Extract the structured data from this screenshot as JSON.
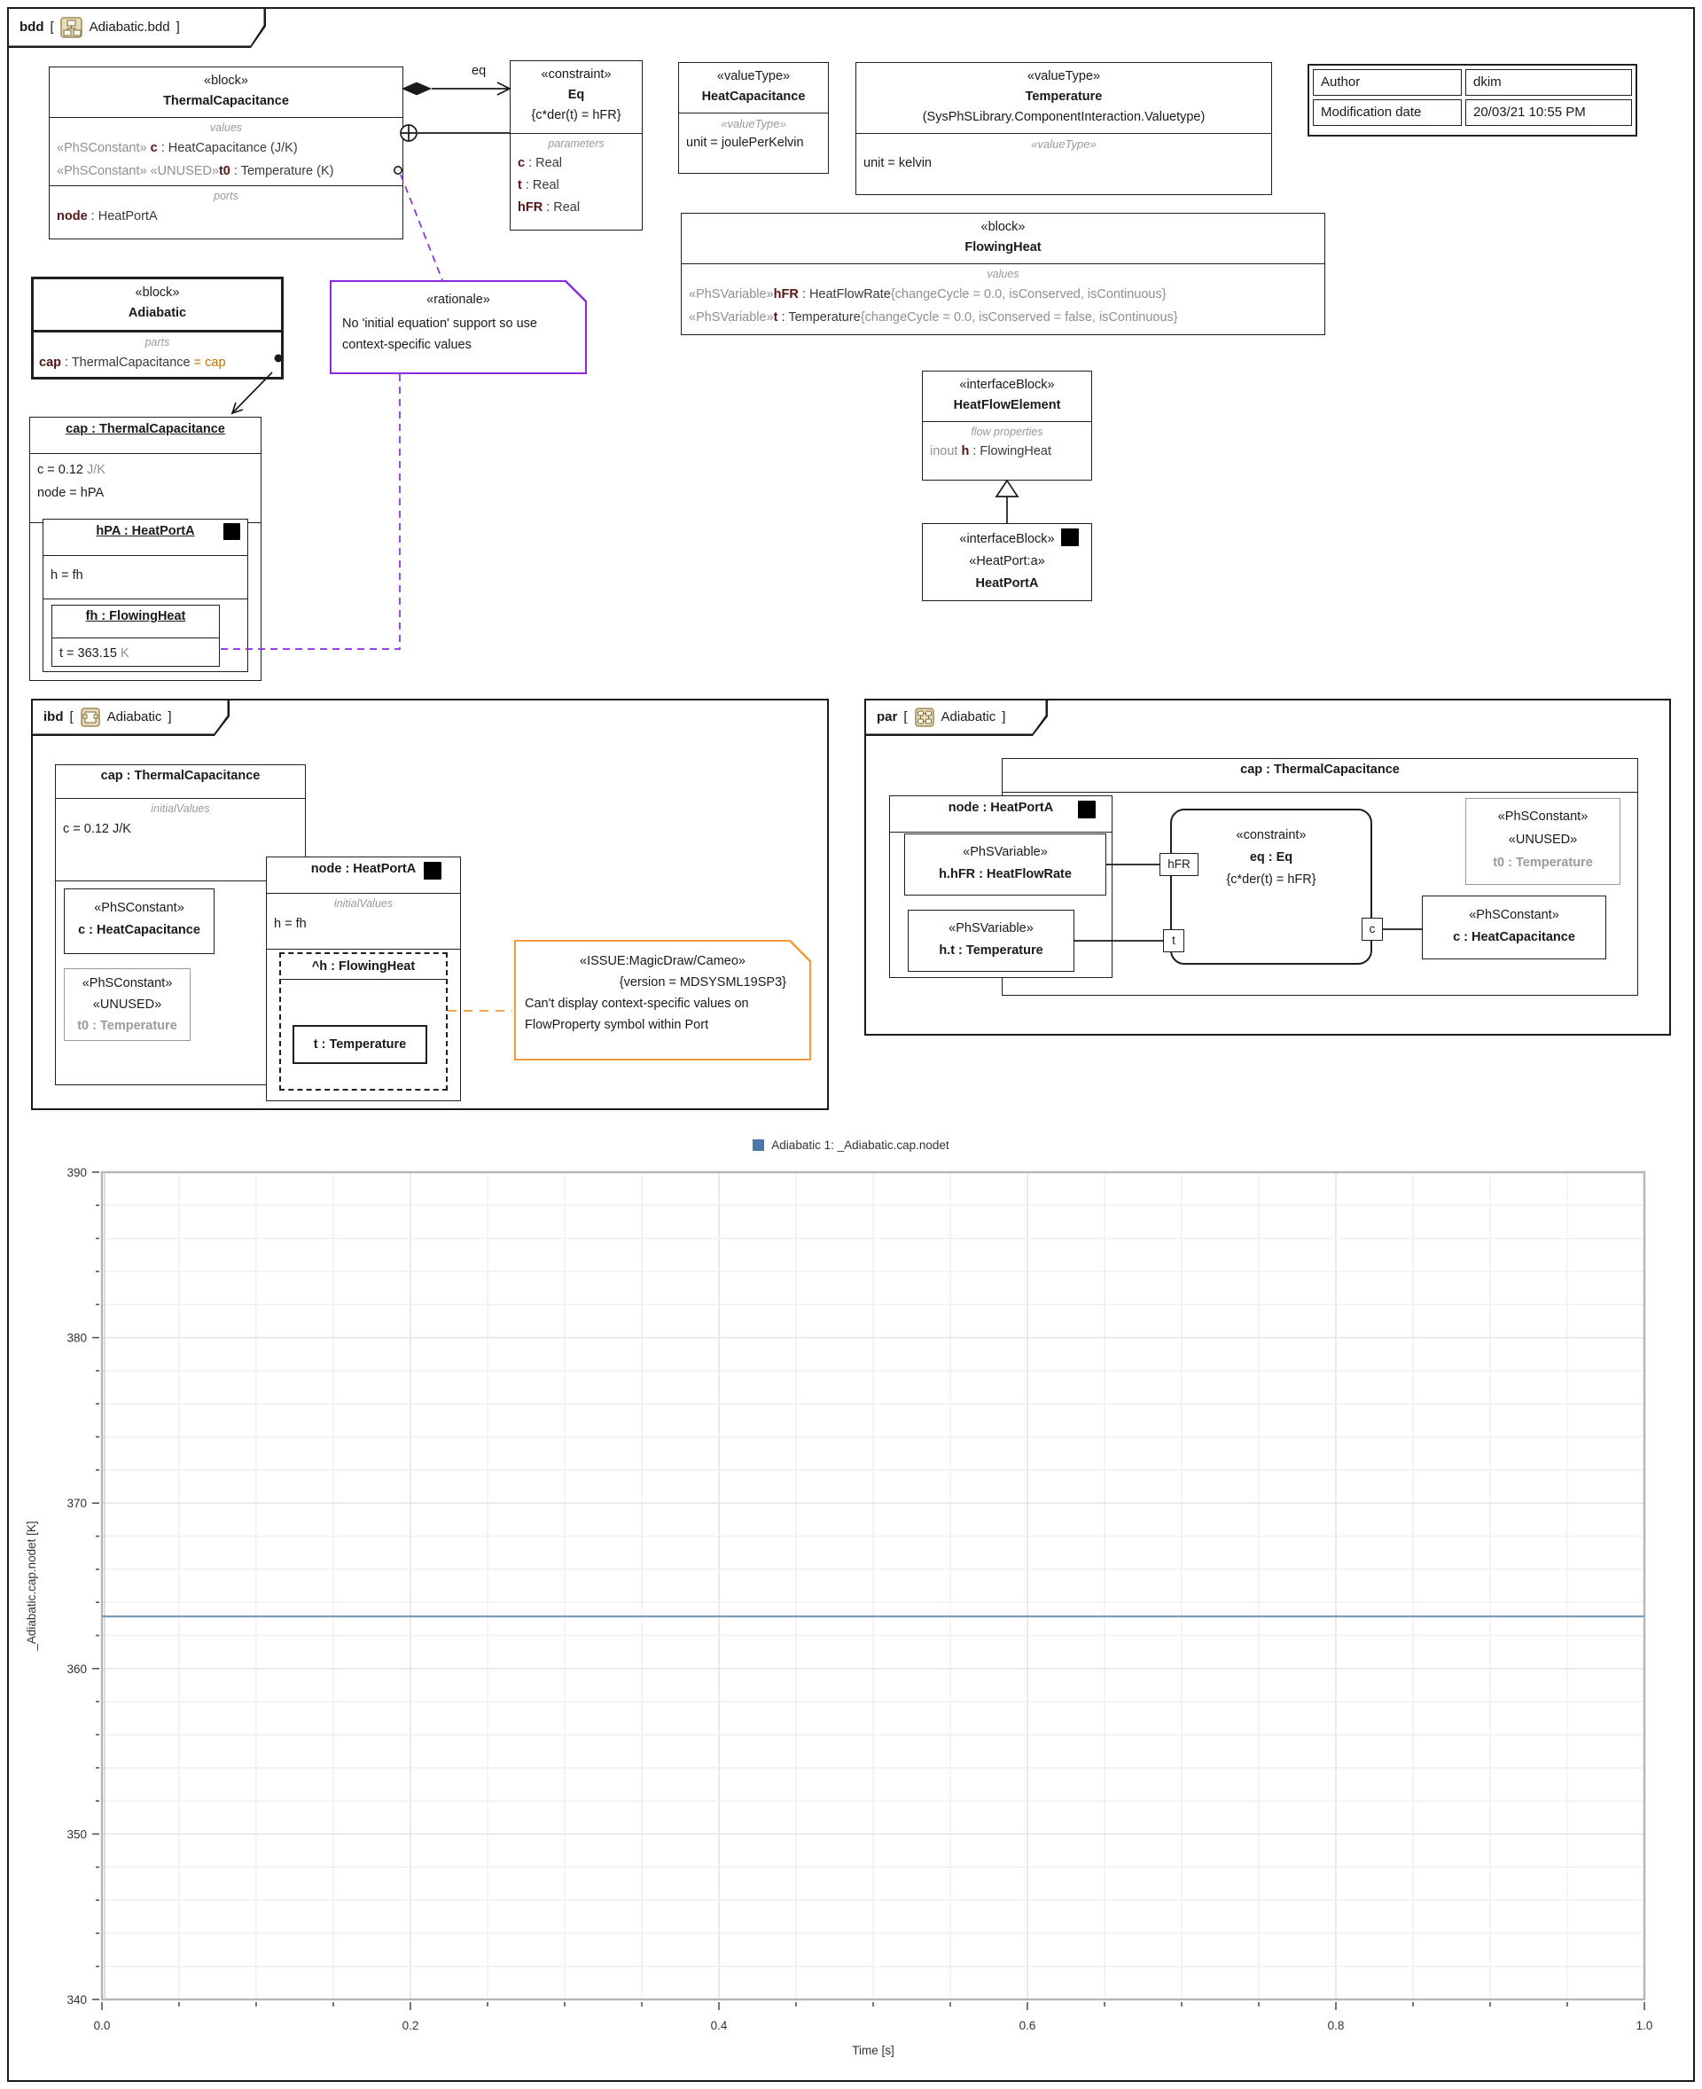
{
  "page": {
    "bdd_tab": {
      "kind": "bdd",
      "open": "[",
      "name": "Adiabatic.bdd",
      "close": "]"
    },
    "ibd_tab": {
      "kind": "ibd",
      "open": "[",
      "name": "Adiabatic",
      "close": "]"
    },
    "par_tab": {
      "kind": "par",
      "open": "[",
      "name": "Adiabatic",
      "close": "]"
    }
  },
  "colors": {
    "property_maroon": "#571414",
    "stereotype_gray": "#8f8f8f",
    "rationale_purple": "#8a2be2",
    "issue_orange": "#f59a35",
    "default_value_orange": "#c07000",
    "chart_line": "#7b9cba",
    "legend_square": "#4878a8"
  },
  "bdd": {
    "thermal_capacitance": {
      "stereotype": "«block»",
      "name": "ThermalCapacitance",
      "values_label": "values",
      "value1_stereo": "«PhSConstant» ",
      "value1_name": "c",
      "value1_type": " : HeatCapacitance (J/K)",
      "value2_stereo": "«PhSConstant» «UNUSED»",
      "value2_name": "t0",
      "value2_type": " : Temperature (K)",
      "ports_label": "ports",
      "port_name": "node",
      "port_type": " : HeatPortA"
    },
    "eq_label": "eq",
    "eq_constraint": {
      "stereotype": "«constraint»",
      "name": "Eq",
      "expression": "{c*der(t) = hFR}",
      "params_label": "parameters",
      "param1_name": "c",
      "param1_type": " : Real",
      "param2_name": "t",
      "param2_type": " : Real",
      "param3_name": "hFR",
      "param3_type": " : Real"
    },
    "heat_capacitance_vt": {
      "stereotype": "«valueType»",
      "name": "HeatCapacitance",
      "inner_stereo": "«valueType»",
      "unit": "unit = joulePerKelvin"
    },
    "temperature_vt": {
      "stereotype": "«valueType»",
      "name": "Temperature",
      "qualifier": "(SysPhSLibrary.ComponentInteraction.Valuetype)",
      "inner_stereo": "«valueType»",
      "unit": "unit = kelvin"
    },
    "info_table": {
      "author_label": "Author",
      "author_value": "dkim",
      "mod_label": "Modification date",
      "mod_value": "20/03/21 10:55 PM"
    },
    "flowing_heat": {
      "stereotype": "«block»",
      "name": "FlowingHeat",
      "values_label": "values",
      "v1_stereo": "«PhSVariable»",
      "v1_name": "hFR",
      "v1_type": " : HeatFlowRate",
      "v1_tags": "{changeCycle = 0.0, isConserved, isContinuous}",
      "v2_stereo": "«PhSVariable»",
      "v2_name": "t",
      "v2_type": " : Temperature",
      "v2_tags": "{changeCycle = 0.0, isConserved = false, isContinuous}"
    },
    "adiabatic": {
      "stereotype": "«block»",
      "name": "Adiabatic",
      "parts_label": "parts",
      "part_name": "cap",
      "part_type": " : ThermalCapacitance ",
      "part_default": "= cap"
    },
    "rationale": {
      "stereotype": "«rationale»",
      "text": "No 'initial equation' support so use context-specific values"
    },
    "cap_instance": {
      "title": "cap : ThermalCapacitance",
      "c_value": "c = 0.12 ",
      "c_unit": "J/K",
      "node_value": "node = hPA",
      "hpa_title": "hPA : HeatPortA",
      "h_value": "h = fh",
      "fh_title": "fh : FlowingHeat",
      "t_value": "t = 363.15 ",
      "t_unit": "K"
    },
    "heat_flow_element": {
      "stereotype": "«interfaceBlock»",
      "name": "HeatFlowElement",
      "flow_label": "flow properties",
      "flow_dir": "inout ",
      "flow_name": "h",
      "flow_type": " : FlowingHeat"
    },
    "heat_port_a": {
      "stereotype": "«interfaceBlock»",
      "substereo": "«HeatPort:a»",
      "name": "HeatPortA"
    }
  },
  "ibd": {
    "cap_title": "cap : ThermalCapacitance",
    "initial_values_label": "initialValues",
    "c_value": "c = 0.12 J/K",
    "c_box": {
      "stereo": "«PhSConstant»",
      "name": "c : HeatCapacitance"
    },
    "t0_box": {
      "stereo1": "«PhSConstant»",
      "stereo2": "«UNUSED»",
      "name": "t0 : Temperature"
    },
    "node": {
      "title": "node : HeatPortA",
      "initial_values_label": "initialValues",
      "h_value": "h = fh",
      "h_title": "^h : FlowingHeat",
      "t_title": "t : Temperature"
    },
    "issue": {
      "stereotype": "«ISSUE:MagicDraw/Cameo»",
      "version": "{version = MDSYSML19SP3}",
      "text": "Can't display context-specific values on FlowProperty symbol within Port"
    }
  },
  "par": {
    "cap_title": "cap : ThermalCapacitance",
    "node_title": "node : HeatPortA",
    "hfr_box": {
      "stereo": "«PhSVariable»",
      "name": "h.hFR : HeatFlowRate"
    },
    "t_box": {
      "stereo": "«PhSVariable»",
      "name": "h.t : Temperature"
    },
    "eq": {
      "stereotype": "«constraint»",
      "name": "eq : Eq",
      "expression": "{c*der(t) = hFR}"
    },
    "port_hfr": "hFR",
    "port_t": "t",
    "port_c": "c",
    "t0_box": {
      "stereo1": "«PhSConstant»",
      "stereo2": "«UNUSED»",
      "name": "t0 : Temperature"
    },
    "c_box": {
      "stereo": "«PhSConstant»",
      "name": "c : HeatCapacitance"
    }
  },
  "chart_data": {
    "type": "line",
    "title": "",
    "legend": [
      {
        "label": "Adiabatic 1: _Adiabatic.cap.nodet",
        "color": "#4878a8"
      }
    ],
    "legend_position": "top",
    "xlabel": "Time [s]",
    "ylabel": "_Adiabatic.cap.nodet [K]",
    "xlim": [
      0.0,
      1.0
    ],
    "ylim": [
      340,
      390
    ],
    "x_major_ticks": [
      0.0,
      0.2,
      0.4,
      0.6,
      0.8,
      1.0
    ],
    "x_minor_step": 0.05,
    "y_major_ticks": [
      340,
      350,
      360,
      370,
      380,
      390
    ],
    "y_minor_step": 2,
    "grid": true,
    "series": [
      {
        "name": "Adiabatic 1: _Adiabatic.cap.nodet",
        "color": "#7b9cba",
        "x": [
          0.0,
          1.0
        ],
        "y": [
          363.15,
          363.15
        ]
      }
    ]
  }
}
